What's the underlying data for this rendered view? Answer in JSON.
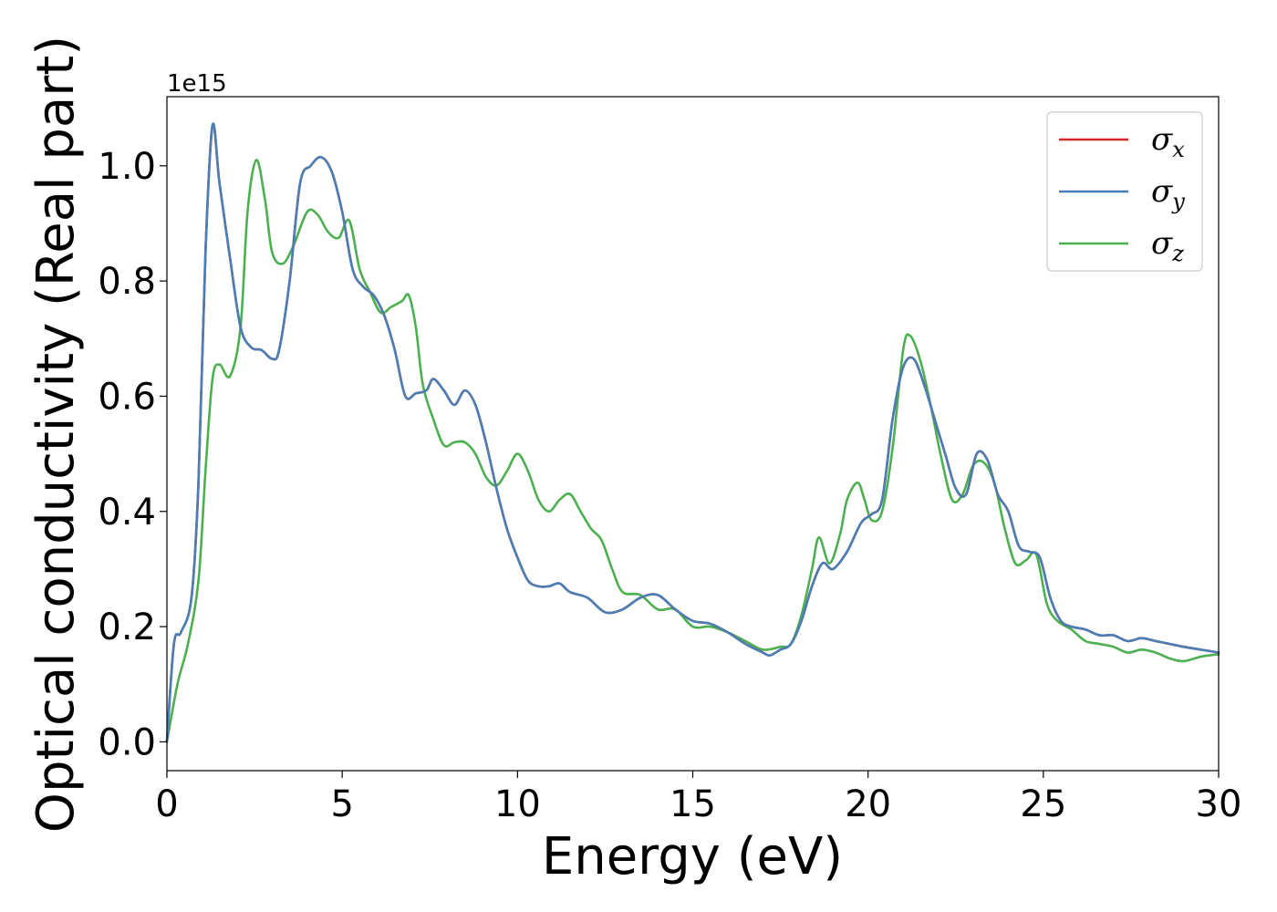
{
  "chart_data": {
    "type": "line",
    "xlabel": "Energy (eV)",
    "ylabel": "Optical conductivity (Real part)",
    "y_offset_label": "1e15",
    "xlim": [
      0,
      30
    ],
    "ylim": [
      -0.05,
      1.12
    ],
    "x_ticks": [
      0,
      5,
      10,
      15,
      20,
      25,
      30
    ],
    "x_tick_labels": [
      "0",
      "5",
      "10",
      "15",
      "20",
      "25",
      "30"
    ],
    "y_ticks": [
      0.0,
      0.2,
      0.4,
      0.6,
      0.8,
      1.0
    ],
    "y_tick_labels": [
      "0.0",
      "0.2",
      "0.4",
      "0.6",
      "0.8",
      "1.0"
    ],
    "grid": false,
    "legend_position": "top-right",
    "series": [
      {
        "name": "σx",
        "legend_symbol": "σ",
        "legend_sub": "x",
        "color": "#d62728",
        "x": [
          0,
          0.2,
          0.4,
          0.7,
          0.9,
          1.1,
          1.3,
          1.5,
          1.8,
          2.1,
          2.4,
          2.7,
          3.0,
          3.2,
          3.5,
          3.8,
          4.1,
          4.4,
          4.7,
          5.0,
          5.3,
          5.6,
          5.9,
          6.2,
          6.5,
          6.8,
          7.1,
          7.4,
          7.6,
          7.9,
          8.2,
          8.5,
          8.8,
          9.1,
          9.4,
          9.7,
          10.0,
          10.3,
          10.6,
          10.9,
          11.2,
          11.5,
          12.0,
          12.5,
          13.0,
          13.5,
          14.0,
          14.5,
          15.0,
          15.5,
          16.0,
          16.5,
          17.0,
          17.2,
          17.5,
          17.8,
          18.1,
          18.4,
          18.7,
          19.0,
          19.4,
          19.8,
          20.1,
          20.4,
          20.7,
          21.0,
          21.3,
          21.6,
          21.9,
          22.2,
          22.5,
          22.8,
          23.1,
          23.4,
          23.7,
          24.0,
          24.3,
          24.6,
          24.9,
          25.2,
          25.5,
          25.8,
          26.2,
          26.6,
          27.0,
          27.4,
          27.8,
          28.2,
          28.6,
          29.0,
          29.5,
          30.0
        ],
        "y": [
          0.0,
          0.17,
          0.19,
          0.25,
          0.45,
          0.85,
          1.07,
          0.97,
          0.84,
          0.72,
          0.685,
          0.68,
          0.665,
          0.68,
          0.8,
          0.97,
          1.0,
          1.015,
          0.99,
          0.92,
          0.82,
          0.79,
          0.775,
          0.74,
          0.68,
          0.6,
          0.605,
          0.61,
          0.63,
          0.61,
          0.585,
          0.61,
          0.585,
          0.52,
          0.44,
          0.37,
          0.32,
          0.28,
          0.27,
          0.27,
          0.275,
          0.26,
          0.25,
          0.225,
          0.23,
          0.25,
          0.255,
          0.23,
          0.21,
          0.205,
          0.19,
          0.17,
          0.155,
          0.15,
          0.16,
          0.17,
          0.21,
          0.27,
          0.31,
          0.3,
          0.33,
          0.38,
          0.395,
          0.42,
          0.56,
          0.65,
          0.665,
          0.62,
          0.56,
          0.5,
          0.44,
          0.43,
          0.5,
          0.49,
          0.43,
          0.4,
          0.34,
          0.33,
          0.32,
          0.25,
          0.21,
          0.2,
          0.195,
          0.185,
          0.185,
          0.175,
          0.18,
          0.175,
          0.17,
          0.165,
          0.16,
          0.155
        ]
      },
      {
        "name": "σy",
        "legend_symbol": "σ",
        "legend_sub": "y",
        "color": "#4a7fb5",
        "x": [
          0,
          0.2,
          0.4,
          0.7,
          0.9,
          1.1,
          1.3,
          1.5,
          1.8,
          2.1,
          2.4,
          2.7,
          3.0,
          3.2,
          3.5,
          3.8,
          4.1,
          4.4,
          4.7,
          5.0,
          5.3,
          5.6,
          5.9,
          6.2,
          6.5,
          6.8,
          7.1,
          7.4,
          7.6,
          7.9,
          8.2,
          8.5,
          8.8,
          9.1,
          9.4,
          9.7,
          10.0,
          10.3,
          10.6,
          10.9,
          11.2,
          11.5,
          12.0,
          12.5,
          13.0,
          13.5,
          14.0,
          14.5,
          15.0,
          15.5,
          16.0,
          16.5,
          17.0,
          17.2,
          17.5,
          17.8,
          18.1,
          18.4,
          18.7,
          19.0,
          19.4,
          19.8,
          20.1,
          20.4,
          20.7,
          21.0,
          21.3,
          21.6,
          21.9,
          22.2,
          22.5,
          22.8,
          23.1,
          23.4,
          23.7,
          24.0,
          24.3,
          24.6,
          24.9,
          25.2,
          25.5,
          25.8,
          26.2,
          26.6,
          27.0,
          27.4,
          27.8,
          28.2,
          28.6,
          29.0,
          29.5,
          30.0
        ],
        "y": [
          0.0,
          0.17,
          0.19,
          0.25,
          0.45,
          0.85,
          1.07,
          0.97,
          0.84,
          0.72,
          0.685,
          0.68,
          0.665,
          0.68,
          0.8,
          0.97,
          1.0,
          1.015,
          0.99,
          0.92,
          0.82,
          0.79,
          0.775,
          0.74,
          0.68,
          0.6,
          0.605,
          0.61,
          0.63,
          0.61,
          0.585,
          0.61,
          0.585,
          0.52,
          0.44,
          0.37,
          0.32,
          0.28,
          0.27,
          0.27,
          0.275,
          0.26,
          0.25,
          0.225,
          0.23,
          0.25,
          0.255,
          0.23,
          0.21,
          0.205,
          0.19,
          0.17,
          0.155,
          0.15,
          0.16,
          0.17,
          0.21,
          0.27,
          0.31,
          0.3,
          0.33,
          0.38,
          0.395,
          0.42,
          0.56,
          0.65,
          0.665,
          0.62,
          0.56,
          0.5,
          0.44,
          0.43,
          0.5,
          0.49,
          0.43,
          0.4,
          0.34,
          0.33,
          0.32,
          0.25,
          0.21,
          0.2,
          0.195,
          0.185,
          0.185,
          0.175,
          0.18,
          0.175,
          0.17,
          0.165,
          0.16,
          0.155
        ]
      },
      {
        "name": "σz",
        "legend_symbol": "σ",
        "legend_sub": "z",
        "color": "#4caf50",
        "x": [
          0,
          0.3,
          0.6,
          0.9,
          1.1,
          1.3,
          1.5,
          1.8,
          2.1,
          2.3,
          2.55,
          2.8,
          3.0,
          3.3,
          3.6,
          4.0,
          4.3,
          4.6,
          4.9,
          5.2,
          5.5,
          5.8,
          6.1,
          6.4,
          6.7,
          6.9,
          7.1,
          7.3,
          7.6,
          7.9,
          8.2,
          8.5,
          8.8,
          9.1,
          9.4,
          9.7,
          10.0,
          10.3,
          10.6,
          10.9,
          11.2,
          11.5,
          11.8,
          12.1,
          12.4,
          12.7,
          13.0,
          13.5,
          14.0,
          14.5,
          15.0,
          15.5,
          16.0,
          16.5,
          17.0,
          17.5,
          17.8,
          18.1,
          18.4,
          18.6,
          18.9,
          19.2,
          19.4,
          19.7,
          19.9,
          20.1,
          20.4,
          20.7,
          21.0,
          21.2,
          21.5,
          21.8,
          22.1,
          22.4,
          22.7,
          23.0,
          23.3,
          23.6,
          23.9,
          24.2,
          24.5,
          24.8,
          25.1,
          25.4,
          25.8,
          26.2,
          26.6,
          27.0,
          27.4,
          27.8,
          28.2,
          28.6,
          29.0,
          29.5,
          30.0
        ],
        "y": [
          0.0,
          0.1,
          0.17,
          0.28,
          0.47,
          0.63,
          0.655,
          0.635,
          0.72,
          0.92,
          1.01,
          0.94,
          0.85,
          0.83,
          0.86,
          0.92,
          0.915,
          0.885,
          0.875,
          0.905,
          0.82,
          0.78,
          0.745,
          0.755,
          0.765,
          0.775,
          0.72,
          0.62,
          0.56,
          0.515,
          0.52,
          0.52,
          0.5,
          0.46,
          0.445,
          0.47,
          0.5,
          0.47,
          0.42,
          0.4,
          0.42,
          0.43,
          0.4,
          0.37,
          0.35,
          0.3,
          0.26,
          0.255,
          0.23,
          0.23,
          0.2,
          0.2,
          0.19,
          0.175,
          0.16,
          0.165,
          0.17,
          0.22,
          0.3,
          0.355,
          0.31,
          0.36,
          0.42,
          0.45,
          0.42,
          0.385,
          0.4,
          0.51,
          0.68,
          0.705,
          0.66,
          0.58,
          0.49,
          0.42,
          0.43,
          0.48,
          0.485,
          0.45,
          0.37,
          0.31,
          0.315,
          0.325,
          0.24,
          0.21,
          0.195,
          0.175,
          0.17,
          0.165,
          0.155,
          0.16,
          0.155,
          0.145,
          0.14,
          0.148,
          0.152
        ]
      }
    ]
  }
}
